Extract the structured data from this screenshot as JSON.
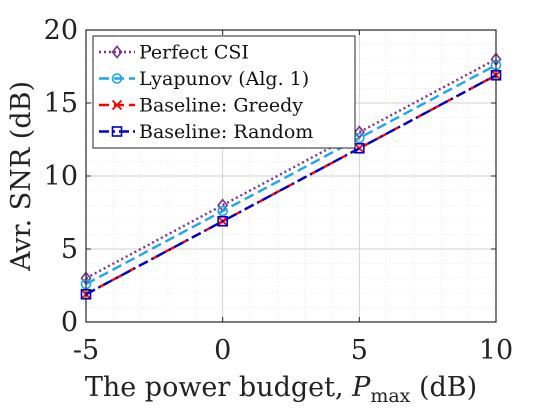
{
  "chart_data": {
    "type": "line",
    "title": "",
    "xlabel": "The power budget, P_max (dB)",
    "xlabel_parts": {
      "prefix": "The power budget, ",
      "symbol": "P",
      "subscript": "max",
      "suffix": " (dB)"
    },
    "ylabel": "Avr. SNR (dB)",
    "xlim": [
      -5,
      10
    ],
    "ylim": [
      0,
      20
    ],
    "x_ticks": [
      "-5",
      "0",
      "5",
      "10"
    ],
    "y_ticks": [
      "0",
      "5",
      "10",
      "15",
      "20"
    ],
    "grid": true,
    "minor_grid": true,
    "legend_position": "top-left",
    "x": [
      -5,
      0,
      5,
      10
    ],
    "series": [
      {
        "name": "Perfect CSI",
        "values": [
          3.0,
          8.0,
          13.0,
          18.0
        ],
        "color": "#7E2F8E",
        "dash": "dotted",
        "marker": "diamond"
      },
      {
        "name": "Lyapunov (Alg. 1)",
        "values": [
          2.6,
          7.6,
          12.6,
          17.6
        ],
        "color": "#1CA7EC",
        "dash": "dashed",
        "marker": "circle"
      },
      {
        "name": "Baseline: Greedy",
        "values": [
          1.9,
          6.9,
          11.9,
          16.9
        ],
        "color": "#FF0000",
        "dash": "dashed",
        "marker": "x"
      },
      {
        "name": "Baseline: Random",
        "values": [
          1.9,
          6.9,
          11.9,
          16.9
        ],
        "color": "#0000CC",
        "dash": "dashdot",
        "marker": "square"
      }
    ]
  }
}
